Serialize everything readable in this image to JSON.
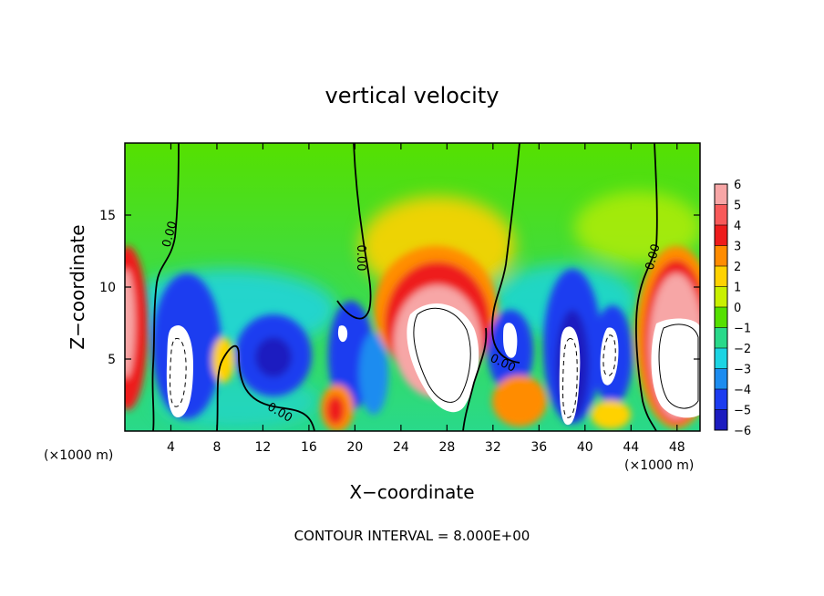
{
  "chart_data": {
    "type": "heatmap",
    "title": "vertical velocity",
    "xlabel": "X−coordinate",
    "ylabel": "Z−coordinate",
    "xlim": [
      0,
      50
    ],
    "ylim": [
      0,
      20
    ],
    "x_unit_left": "(×1000 m)",
    "x_unit_right": "(×1000 m)",
    "x_ticks": [
      4,
      8,
      12,
      16,
      20,
      24,
      28,
      32,
      36,
      40,
      44,
      48
    ],
    "x_tick_labels": [
      "4",
      "8",
      "12",
      "16",
      "20",
      "24",
      "28",
      "32",
      "36",
      "40",
      "44",
      "48"
    ],
    "y_ticks": [
      5,
      10,
      15
    ],
    "y_tick_labels": [
      "5",
      "10",
      "15"
    ],
    "colorbar": {
      "levels": [
        6,
        5,
        4,
        3,
        2,
        1,
        0,
        -1,
        -2,
        -3,
        -4,
        -5,
        -6
      ],
      "labels": [
        "6",
        "5",
        "4",
        "3",
        "2",
        "1",
        "0",
        "−1",
        "−2",
        "−3",
        "−4",
        "−5",
        "−6"
      ],
      "colors": [
        "#f7a6a6",
        "#f85a5a",
        "#ee1c1c",
        "#ff8c00",
        "#ffd200",
        "#c9f000",
        "#55e000",
        "#29d98a",
        "#1cd4e3",
        "#1c8cf0",
        "#1c3cf0",
        "#1c1cc0",
        "#7a1cb0"
      ]
    },
    "contour_labels": [
      "0.00",
      "0.00",
      "0.00",
      "0.00",
      "0.00"
    ],
    "contour_interval_text": "CONTOUR INTERVAL = 8.000E+00",
    "grid": false
  }
}
